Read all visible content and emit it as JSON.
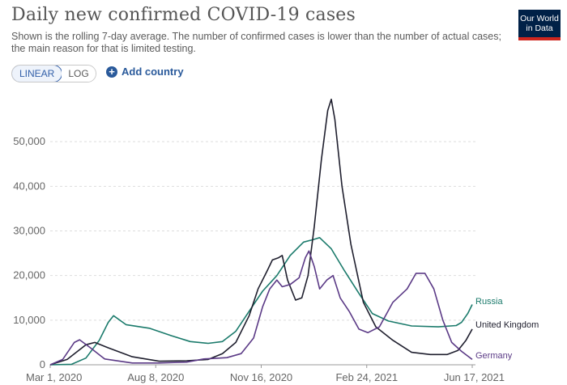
{
  "header": {
    "title": "Daily new confirmed COVID-19 cases",
    "subtitle": "Shown is the rolling 7-day average. The number of confirmed cases is lower than the number of actual cases; the main reason for that is limited testing.",
    "logo_line1": "Our World",
    "logo_line2": "in Data"
  },
  "controls": {
    "scale_options": [
      "LINEAR",
      "LOG"
    ],
    "selected_scale": "LINEAR",
    "add_country_label": "Add country"
  },
  "colors": {
    "russia": "#1a7a6b",
    "uk": "#1f1f2e",
    "germany": "#5b3a86",
    "grid": "#dddddd"
  },
  "chart_data": {
    "type": "line",
    "x_tick_labels": [
      "Mar 1, 2020",
      "Aug 8, 2020",
      "Nov 16, 2020",
      "Feb 24, 2021",
      "Jun 17, 2021"
    ],
    "x_range": [
      "2020-03-01",
      "2021-06-17"
    ],
    "y_ticks": [
      0,
      10000,
      20000,
      30000,
      40000,
      50000
    ],
    "y_tick_labels": [
      "0",
      "10,000",
      "20,000",
      "30,000",
      "40,000",
      "50,000"
    ],
    "ylim": [
      0,
      60000
    ],
    "grid": true,
    "series": [
      {
        "name": "Russia",
        "points": [
          [
            "2020-03-01",
            0
          ],
          [
            "2020-03-25",
            100
          ],
          [
            "2020-04-10",
            1500
          ],
          [
            "2020-04-25",
            5500
          ],
          [
            "2020-05-05",
            9500
          ],
          [
            "2020-05-11",
            11000
          ],
          [
            "2020-05-25",
            9000
          ],
          [
            "2020-06-20",
            8200
          ],
          [
            "2020-07-15",
            6500
          ],
          [
            "2020-08-05",
            5200
          ],
          [
            "2020-08-25",
            4800
          ],
          [
            "2020-09-10",
            5200
          ],
          [
            "2020-09-25",
            7500
          ],
          [
            "2020-10-10",
            12000
          ],
          [
            "2020-10-25",
            16500
          ],
          [
            "2020-11-10",
            20000
          ],
          [
            "2020-11-25",
            24500
          ],
          [
            "2020-12-10",
            27500
          ],
          [
            "2020-12-20",
            28000
          ],
          [
            "2020-12-28",
            28500
          ],
          [
            "2021-01-10",
            26000
          ],
          [
            "2021-01-25",
            21000
          ],
          [
            "2021-02-10",
            16000
          ],
          [
            "2021-02-25",
            11500
          ],
          [
            "2021-03-15",
            9800
          ],
          [
            "2021-04-10",
            8700
          ],
          [
            "2021-05-10",
            8500
          ],
          [
            "2021-05-30",
            8800
          ],
          [
            "2021-06-05",
            9500
          ],
          [
            "2021-06-12",
            11500
          ],
          [
            "2021-06-17",
            13500
          ]
        ]
      },
      {
        "name": "United Kingdom",
        "points": [
          [
            "2020-03-01",
            0
          ],
          [
            "2020-03-20",
            1200
          ],
          [
            "2020-04-10",
            4500
          ],
          [
            "2020-04-20",
            5000
          ],
          [
            "2020-05-05",
            3800
          ],
          [
            "2020-06-01",
            1800
          ],
          [
            "2020-07-01",
            800
          ],
          [
            "2020-08-01",
            900
          ],
          [
            "2020-08-25",
            1200
          ],
          [
            "2020-09-10",
            2500
          ],
          [
            "2020-09-25",
            5000
          ],
          [
            "2020-10-10",
            11000
          ],
          [
            "2020-10-20",
            17000
          ],
          [
            "2020-10-30",
            21000
          ],
          [
            "2020-11-05",
            23500
          ],
          [
            "2020-11-12",
            24000
          ],
          [
            "2020-11-16",
            24500
          ],
          [
            "2020-11-22",
            19000
          ],
          [
            "2020-12-01",
            14500
          ],
          [
            "2020-12-08",
            15000
          ],
          [
            "2020-12-15",
            20000
          ],
          [
            "2020-12-22",
            31000
          ],
          [
            "2020-12-30",
            46000
          ],
          [
            "2021-01-06",
            57000
          ],
          [
            "2021-01-10",
            59500
          ],
          [
            "2021-01-14",
            55000
          ],
          [
            "2021-01-22",
            40000
          ],
          [
            "2021-02-01",
            27000
          ],
          [
            "2021-02-15",
            14000
          ],
          [
            "2021-03-01",
            8500
          ],
          [
            "2021-03-20",
            5500
          ],
          [
            "2021-04-10",
            2800
          ],
          [
            "2021-05-01",
            2300
          ],
          [
            "2021-05-20",
            2300
          ],
          [
            "2021-06-01",
            3200
          ],
          [
            "2021-06-10",
            5500
          ],
          [
            "2021-06-17",
            8000
          ]
        ]
      },
      {
        "name": "Germany",
        "points": [
          [
            "2020-03-01",
            0
          ],
          [
            "2020-03-15",
            1200
          ],
          [
            "2020-03-28",
            5000
          ],
          [
            "2020-04-03",
            5600
          ],
          [
            "2020-04-15",
            3800
          ],
          [
            "2020-05-01",
            1300
          ],
          [
            "2020-06-01",
            400
          ],
          [
            "2020-07-01",
            400
          ],
          [
            "2020-08-01",
            600
          ],
          [
            "2020-08-20",
            1300
          ],
          [
            "2020-09-15",
            1600
          ],
          [
            "2020-10-01",
            2500
          ],
          [
            "2020-10-15",
            6000
          ],
          [
            "2020-10-25",
            13000
          ],
          [
            "2020-11-02",
            17000
          ],
          [
            "2020-11-10",
            19000
          ],
          [
            "2020-11-16",
            17500
          ],
          [
            "2020-11-25",
            18000
          ],
          [
            "2020-12-05",
            19500
          ],
          [
            "2020-12-12",
            24000
          ],
          [
            "2020-12-16",
            25500
          ],
          [
            "2020-12-22",
            22000
          ],
          [
            "2020-12-28",
            17000
          ],
          [
            "2021-01-05",
            19000
          ],
          [
            "2021-01-12",
            20000
          ],
          [
            "2021-01-20",
            15000
          ],
          [
            "2021-01-30",
            12000
          ],
          [
            "2021-02-10",
            8000
          ],
          [
            "2021-02-20",
            7200
          ],
          [
            "2021-03-05",
            8500
          ],
          [
            "2021-03-20",
            14000
          ],
          [
            "2021-04-05",
            17000
          ],
          [
            "2021-04-15",
            20500
          ],
          [
            "2021-04-25",
            20500
          ],
          [
            "2021-05-05",
            17000
          ],
          [
            "2021-05-15",
            10000
          ],
          [
            "2021-05-25",
            5000
          ],
          [
            "2021-06-05",
            3000
          ],
          [
            "2021-06-17",
            1200
          ]
        ]
      }
    ]
  }
}
